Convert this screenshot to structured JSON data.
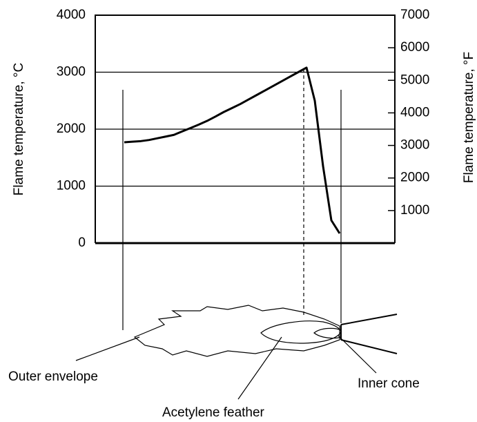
{
  "chart_data": {
    "type": "line",
    "ylabel": "Flame temperature, °C",
    "y2label": "Flame temperature, °F",
    "categories": [
      null,
      null,
      null,
      null,
      null,
      null,
      null,
      null,
      null,
      null,
      null,
      null,
      null,
      null,
      null,
      null,
      null,
      null,
      null,
      null,
      null,
      null,
      null,
      null,
      null,
      null,
      null
    ],
    "values": [
      1770,
      1780,
      1790,
      1810,
      1840,
      1870,
      1900,
      1960,
      2020,
      2080,
      2145,
      2220,
      2300,
      2370,
      2440,
      2520,
      2600,
      2680,
      2760,
      2840,
      2920,
      3000,
      3080,
      2500,
      1350,
      400,
      170
    ],
    "color": "#000000",
    "ylim": [
      0,
      4000
    ],
    "yticks": [
      0,
      1000,
      2000,
      3000,
      4000
    ],
    "y2lim": [
      0,
      7000
    ],
    "y2ticks": [
      1000,
      2000,
      3000,
      4000,
      5000,
      6000,
      7000
    ],
    "grid": true,
    "annotations": [
      "Outer envelope",
      "Acetylene feather",
      "Inner cone"
    ]
  }
}
